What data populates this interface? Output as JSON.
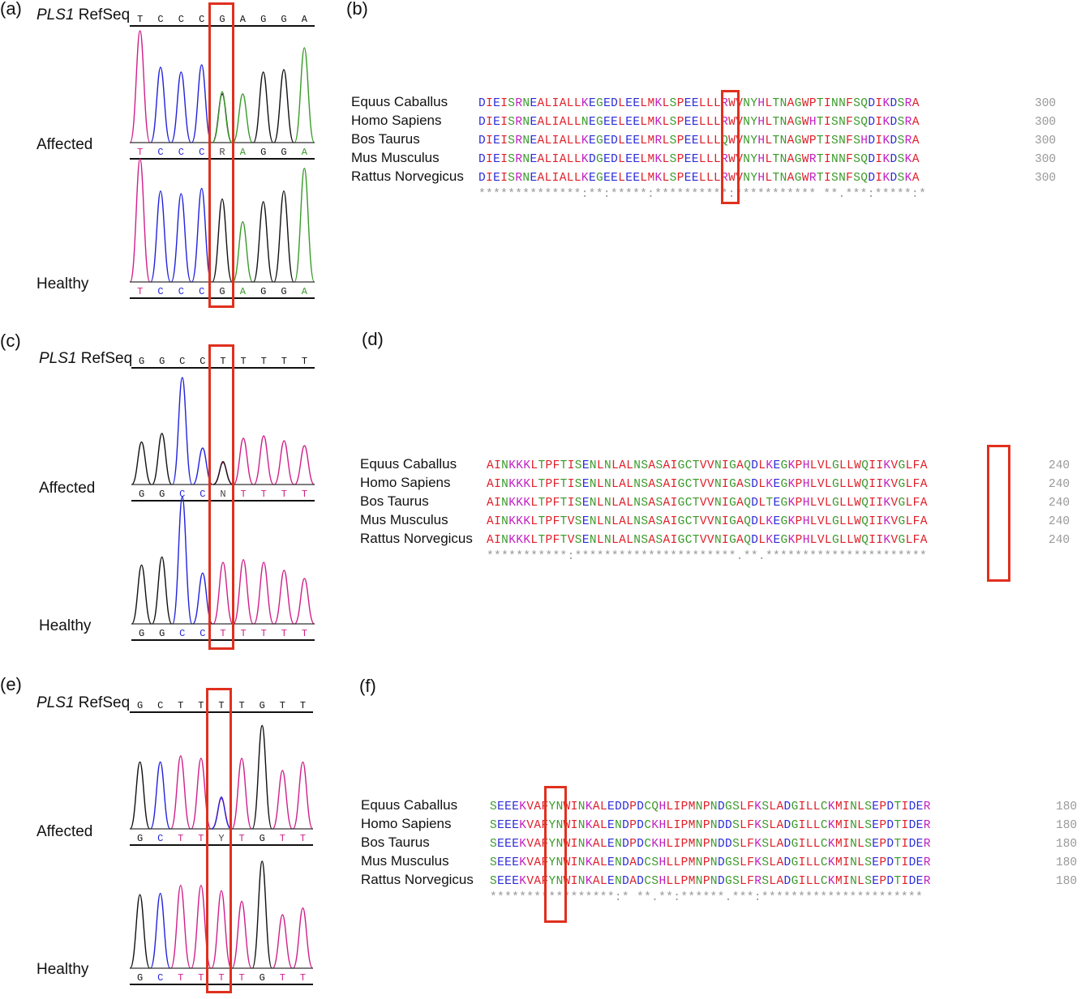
{
  "colors": {
    "A": "#3a9a2a",
    "C": "#2222dd",
    "G": "#111111",
    "T": "#d0208a",
    "acidic": "#2b2bd8",
    "basic": "#c020c0",
    "hydrophobic": "#e0202a",
    "polar": "#3a9a2a",
    "highlight": "#e0301e"
  },
  "panels": [
    {
      "letter": "(a)",
      "refseq_gene": "PLS1",
      "refseq_suffix": "RefSeq",
      "refseq_bases": [
        "T",
        "C",
        "C",
        "C",
        "G",
        "A",
        "G",
        "G",
        "A"
      ],
      "affected_label": "Affected",
      "affected_bases": [
        "T",
        "C",
        "C",
        "C",
        "R",
        "A",
        "G",
        "G",
        "A"
      ],
      "healthy_label": "Healthy",
      "healthy_bases": [
        "T",
        "C",
        "C",
        "C",
        "G",
        "A",
        "G",
        "G",
        "A"
      ],
      "affected_peaks": [
        {
          "base": "T",
          "h": 0.92
        },
        {
          "base": "C",
          "h": 0.62
        },
        {
          "base": "C",
          "h": 0.58
        },
        {
          "base": "C",
          "h": 0.64
        },
        {
          "base": "G",
          "h": 0.4
        },
        {
          "base": "A",
          "h": 0.4
        },
        {
          "base": "G",
          "h": 0.58
        },
        {
          "base": "G",
          "h": 0.6
        },
        {
          "base": "A",
          "h": 0.78
        }
      ],
      "affected_het_base": "A",
      "healthy_peaks": [
        {
          "base": "T",
          "h": 0.92
        },
        {
          "base": "C",
          "h": 0.68
        },
        {
          "base": "C",
          "h": 0.66
        },
        {
          "base": "C",
          "h": 0.7
        },
        {
          "base": "G",
          "h": 0.62
        },
        {
          "base": "A",
          "h": 0.45
        },
        {
          "base": "G",
          "h": 0.6
        },
        {
          "base": "G",
          "h": 0.68
        },
        {
          "base": "A",
          "h": 0.85
        }
      ]
    },
    {
      "letter": "(c)",
      "refseq_gene": "PLS1",
      "refseq_suffix": "RefSeq",
      "refseq_bases": [
        "G",
        "G",
        "C",
        "C",
        "T",
        "T",
        "T",
        "T",
        "T"
      ],
      "affected_label": "Affected",
      "affected_bases": [
        "G",
        "G",
        "C",
        "C",
        "N",
        "T",
        "T",
        "T",
        "T"
      ],
      "healthy_label": "Healthy",
      "healthy_bases": [
        "G",
        "G",
        "C",
        "C",
        "T",
        "T",
        "T",
        "T",
        "T"
      ],
      "affected_peaks": [
        {
          "base": "G",
          "h": 0.35
        },
        {
          "base": "G",
          "h": 0.42
        },
        {
          "base": "C",
          "h": 0.88
        },
        {
          "base": "C",
          "h": 0.3
        },
        {
          "base": "T",
          "h": 0.18
        },
        {
          "base": "T",
          "h": 0.38
        },
        {
          "base": "T",
          "h": 0.4
        },
        {
          "base": "T",
          "h": 0.36
        },
        {
          "base": "T",
          "h": 0.32
        }
      ],
      "affected_het_base": "G",
      "healthy_peaks": [
        {
          "base": "G",
          "h": 0.44
        },
        {
          "base": "G",
          "h": 0.5
        },
        {
          "base": "C",
          "h": 0.95
        },
        {
          "base": "C",
          "h": 0.38
        },
        {
          "base": "T",
          "h": 0.46
        },
        {
          "base": "T",
          "h": 0.48
        },
        {
          "base": "T",
          "h": 0.46
        },
        {
          "base": "T",
          "h": 0.4
        },
        {
          "base": "T",
          "h": 0.34
        }
      ]
    },
    {
      "letter": "(e)",
      "refseq_gene": "PLS1",
      "refseq_suffix": "RefSeq",
      "refseq_bases": [
        "G",
        "C",
        "T",
        "T",
        "T",
        "T",
        "G",
        "T",
        "T"
      ],
      "affected_label": "Affected",
      "affected_bases": [
        "G",
        "C",
        "T",
        "T",
        "Y",
        "T",
        "G",
        "T",
        "T"
      ],
      "healthy_label": "Healthy",
      "healthy_bases": [
        "G",
        "C",
        "T",
        "T",
        "T",
        "T",
        "G",
        "T",
        "T"
      ],
      "affected_peaks": [
        {
          "base": "G",
          "h": 0.55
        },
        {
          "base": "C",
          "h": 0.55
        },
        {
          "base": "T",
          "h": 0.6
        },
        {
          "base": "T",
          "h": 0.58
        },
        {
          "base": "T",
          "h": 0.25
        },
        {
          "base": "T",
          "h": 0.58
        },
        {
          "base": "G",
          "h": 0.85
        },
        {
          "base": "T",
          "h": 0.48
        },
        {
          "base": "T",
          "h": 0.55
        }
      ],
      "affected_het_base": "C",
      "healthy_peaks": [
        {
          "base": "G",
          "h": 0.55
        },
        {
          "base": "C",
          "h": 0.56
        },
        {
          "base": "T",
          "h": 0.62
        },
        {
          "base": "T",
          "h": 0.62
        },
        {
          "base": "T",
          "h": 0.58
        },
        {
          "base": "T",
          "h": 0.5
        },
        {
          "base": "G",
          "h": 0.8
        },
        {
          "base": "T",
          "h": 0.4
        },
        {
          "base": "T",
          "h": 0.45
        }
      ]
    }
  ],
  "alignments": [
    {
      "letter": "(b)",
      "species": [
        "Equus Caballus",
        "Homo Sapiens",
        "Bos Taurus",
        "Mus Musculus",
        "Rattus Norvegicus"
      ],
      "sequences": [
        "DIEISRNEALIALLKEGEDLEELMKLSPEELLLRWVNYHLTNAGWPTINNFSQDIKDSRA",
        "DIEISRNEALIALLNEGEELEELMKLSPEELLLRWVNYHLTNAGWHTISNFSQDIKDSRA",
        "DIEISRNEALIALLKEGEDLEELMRLSPEELLLQWVNYHLTNAGWPTISNFSHDIKDSRA",
        "DIEISRNEALIALLKDGEDLEELMKLSPEELLLRWVNYHLTNAGWRTINNFSQDIKDSKA",
        "DIEISRNEALIALLKEGEELEELMKLSPEELLLRWVNYHLTNAGWRTISNFSQDIKDSKA"
      ],
      "end_numbers": [
        "300",
        "300",
        "300",
        "300",
        "300"
      ],
      "consensus": "**************:**:*****:**********:*********** **.***:*****:*"
    },
    {
      "letter": "(d)",
      "species": [
        "Equus Caballus",
        "Homo Sapiens",
        "Bos Taurus",
        "Mus Musculus",
        "Rattus Norvegicus"
      ],
      "sequences": [
        "AINKKKLTPFTISENLNLALNSASAIGCTVVNIGAQDLKEGKPHLVLGLLWQIIKVGLFA",
        "AINKKKLTPFTISENLNLALNSASAIGCTVVNIGASDLKEGKPHLVLGLLWQIIKVGLFA",
        "AINKKKLTPFTISENLNLALNSASAIGCTVVNIGAQDLTEGKPHLVLGLLWQIIKVGLFA",
        "AINKKKLTPFTVSENLNLALNSASAIGCTVVNIGAQDLKEGKPHLVLGLLWQIIKVGLFA",
        "AINKKKLTPFTVSENLNLALNSASAIGCTVVNIGAQDLKEGKPHLVLGLLWQIIKVGLFA"
      ],
      "end_numbers": [
        "240",
        "240",
        "240",
        "240",
        "240"
      ],
      "consensus": "***********:**********************.**.**********************"
    },
    {
      "letter": "(f)",
      "species": [
        "Equus Caballus",
        "Homo Sapiens",
        "Bos Taurus",
        "Mus Musculus",
        "Rattus Norvegicus"
      ],
      "sequences": [
        "SEEEKVAFYNWINKALEDDPDCQHLIPMNPNDGSLFKSLADGILLCKMINLSEPDTIDER",
        "SEEEKVAFYNWINKALENDPDCKHLIPMNPNDDSLFKSLADGILLCKMINLSEPDTIDER",
        "SEEEKVAFYNWINKALENDPDCKHLIPMNPNDDSLFKSLADGILLCKMINLSEPDTIDER",
        "SEEEKVAFYNWINKALENDADCSHLLPMNPNDGSLFKSLADGILLCKMINLSEPDTIDER",
        "SEEEKVAFYNWINKALENDADCSHLLPMNPNDGSLFRSLADGILLCKMINLSEPDTIDER"
      ],
      "end_numbers": [
        "180",
        "180",
        "180",
        "180",
        "180"
      ],
      "consensus": "*****************:* **.**:******.***:**********************"
    }
  ]
}
